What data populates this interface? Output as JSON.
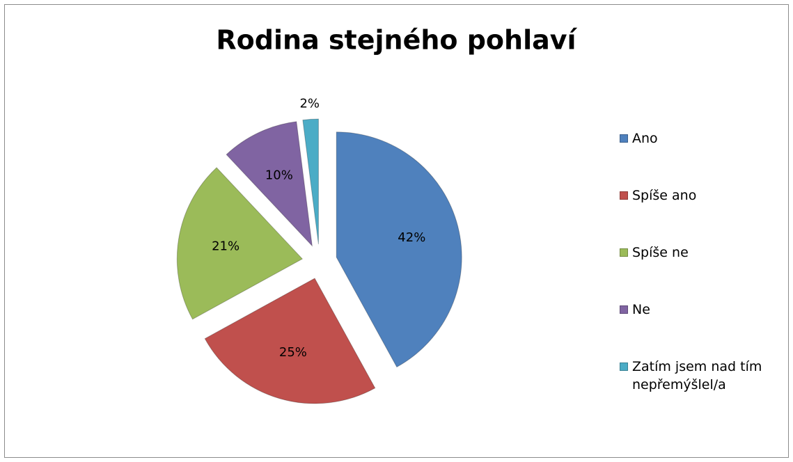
{
  "chart_data": {
    "type": "pie",
    "title": "Rodina stejného pohlaví",
    "categories": [
      "Ano",
      "Spíše ano",
      "Spíše ne",
      "Ne",
      "Zatím jsem nad tím nepřemýšlel/a"
    ],
    "values": [
      42,
      25,
      21,
      10,
      2
    ],
    "value_labels": [
      "42%",
      "25%",
      "21%",
      "10%",
      "2%"
    ],
    "colors": [
      "#4f81bd",
      "#c0504d",
      "#9bbb59",
      "#8064a2",
      "#4bacc6"
    ],
    "legend": "right"
  }
}
